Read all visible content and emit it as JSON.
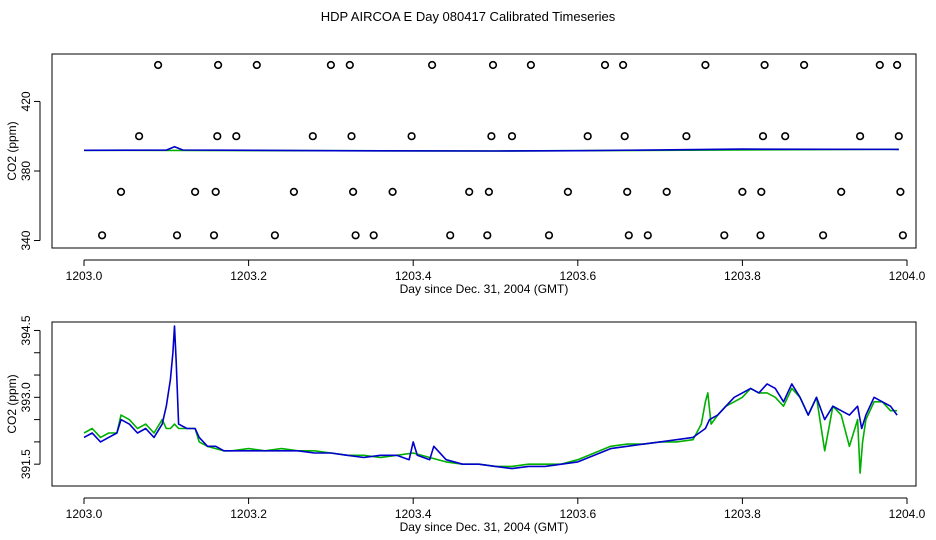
{
  "page_title": "HDP AIRCOA E  Day 080417  Calibrated Timeseries",
  "colors": {
    "background": "#ffffff",
    "axis": "#000000",
    "blue": "#0000cc",
    "green": "#00b000"
  },
  "chart_data": [
    {
      "type": "scatter",
      "xlabel": "Day since Dec. 31, 2004 (GMT)",
      "ylabel": "CO2 (ppm)",
      "xlim": [
        1203.0,
        1204.0
      ],
      "ylim": [
        338,
        445
      ],
      "x_ticks": [
        1203.0,
        1203.2,
        1203.4,
        1203.6,
        1203.8,
        1204.0
      ],
      "x_tick_labels": [
        "1203.0",
        "1203.2",
        "1203.4",
        "1203.6",
        "1203.8",
        "1204.0"
      ],
      "y_ticks": [
        340,
        380,
        420
      ],
      "y_tick_labels": [
        "340",
        "380",
        "420"
      ],
      "grid": false,
      "points": [
        [
          1203.022,
          343
        ],
        [
          1203.045,
          368
        ],
        [
          1203.067,
          400
        ],
        [
          1203.09,
          441
        ],
        [
          1203.113,
          343
        ],
        [
          1203.135,
          368
        ],
        [
          1203.158,
          343
        ],
        [
          1203.16,
          368
        ],
        [
          1203.162,
          400
        ],
        [
          1203.163,
          441
        ],
        [
          1203.185,
          400
        ],
        [
          1203.21,
          441
        ],
        [
          1203.232,
          343
        ],
        [
          1203.255,
          368
        ],
        [
          1203.278,
          400
        ],
        [
          1203.3,
          441
        ],
        [
          1203.323,
          441
        ],
        [
          1203.325,
          400
        ],
        [
          1203.327,
          368
        ],
        [
          1203.33,
          343
        ],
        [
          1203.352,
          343
        ],
        [
          1203.375,
          368
        ],
        [
          1203.398,
          400
        ],
        [
          1203.423,
          441
        ],
        [
          1203.445,
          343
        ],
        [
          1203.468,
          368
        ],
        [
          1203.49,
          343
        ],
        [
          1203.492,
          368
        ],
        [
          1203.495,
          400
        ],
        [
          1203.497,
          441
        ],
        [
          1203.52,
          400
        ],
        [
          1203.543,
          441
        ],
        [
          1203.565,
          343
        ],
        [
          1203.588,
          368
        ],
        [
          1203.612,
          400
        ],
        [
          1203.633,
          441
        ],
        [
          1203.655,
          441
        ],
        [
          1203.657,
          400
        ],
        [
          1203.66,
          368
        ],
        [
          1203.662,
          343
        ],
        [
          1203.685,
          343
        ],
        [
          1203.708,
          368
        ],
        [
          1203.732,
          400
        ],
        [
          1203.755,
          441
        ],
        [
          1203.778,
          343
        ],
        [
          1203.8,
          368
        ],
        [
          1203.822,
          343
        ],
        [
          1203.823,
          368
        ],
        [
          1203.825,
          400
        ],
        [
          1203.827,
          441
        ],
        [
          1203.852,
          400
        ],
        [
          1203.875,
          441
        ],
        [
          1203.898,
          343
        ],
        [
          1203.92,
          368
        ],
        [
          1203.943,
          400
        ],
        [
          1203.967,
          441
        ],
        [
          1203.988,
          441
        ],
        [
          1203.99,
          400
        ],
        [
          1203.992,
          368
        ],
        [
          1203.995,
          343
        ]
      ],
      "series": [
        {
          "color": "blue",
          "x": [
            1203.0,
            1203.1,
            1203.11,
            1203.12,
            1203.3,
            1203.5,
            1203.6,
            1203.8,
            1203.99
          ],
          "values": [
            391.9,
            392.0,
            394.0,
            392.1,
            391.7,
            391.5,
            391.7,
            392.6,
            392.4
          ]
        },
        {
          "color": "green",
          "x": [
            1203.0,
            1203.3,
            1203.5,
            1203.7,
            1203.99
          ],
          "values": [
            391.9,
            391.7,
            391.5,
            391.9,
            392.5
          ]
        }
      ]
    },
    {
      "type": "line",
      "xlabel": "Day since Dec. 31, 2004 (GMT)",
      "ylabel": "CO2 (ppm)",
      "xlim": [
        1203.0,
        1204.0
      ],
      "ylim": [
        391.1,
        394.6
      ],
      "x_ticks": [
        1203.0,
        1203.2,
        1203.4,
        1203.6,
        1203.8,
        1204.0
      ],
      "x_tick_labels": [
        "1203.0",
        "1203.2",
        "1203.4",
        "1203.6",
        "1203.8",
        "1204.0"
      ],
      "y_ticks": [
        391.5,
        392.0,
        392.5,
        393.0,
        393.5,
        394.0,
        394.5
      ],
      "y_tick_labels": [
        "391.5",
        "",
        "",
        "393.0",
        "",
        "",
        "394.5"
      ],
      "grid": false,
      "series": [
        {
          "color": "blue",
          "x": [
            1203.0,
            1203.01,
            1203.02,
            1203.03,
            1203.04,
            1203.045,
            1203.055,
            1203.065,
            1203.075,
            1203.085,
            1203.095,
            1203.1,
            1203.105,
            1203.108,
            1203.11,
            1203.112,
            1203.115,
            1203.125,
            1203.135,
            1203.14,
            1203.15,
            1203.16,
            1203.17,
            1203.18,
            1203.2,
            1203.22,
            1203.24,
            1203.26,
            1203.28,
            1203.3,
            1203.32,
            1203.34,
            1203.36,
            1203.38,
            1203.395,
            1203.4,
            1203.405,
            1203.42,
            1203.425,
            1203.44,
            1203.46,
            1203.48,
            1203.5,
            1203.52,
            1203.54,
            1203.56,
            1203.58,
            1203.6,
            1203.62,
            1203.64,
            1203.66,
            1203.68,
            1203.7,
            1203.72,
            1203.74,
            1203.755,
            1203.76,
            1203.77,
            1203.78,
            1203.79,
            1203.8,
            1203.81,
            1203.82,
            1203.83,
            1203.84,
            1203.85,
            1203.86,
            1203.87,
            1203.88,
            1203.89,
            1203.9,
            1203.91,
            1203.92,
            1203.93,
            1203.94,
            1203.945,
            1203.95,
            1203.96,
            1203.97,
            1203.98,
            1203.988
          ],
          "values": [
            392.1,
            392.2,
            392.0,
            392.1,
            392.2,
            392.5,
            392.4,
            392.2,
            392.3,
            392.1,
            392.4,
            392.8,
            393.4,
            394.0,
            394.6,
            393.8,
            392.4,
            392.3,
            392.3,
            392.1,
            391.9,
            391.9,
            391.8,
            391.8,
            391.8,
            391.8,
            391.8,
            391.8,
            391.75,
            391.75,
            391.7,
            391.65,
            391.7,
            391.7,
            391.6,
            392.0,
            391.7,
            391.6,
            391.9,
            391.6,
            391.5,
            391.5,
            391.45,
            391.4,
            391.45,
            391.45,
            391.5,
            391.55,
            391.7,
            391.85,
            391.9,
            391.95,
            392.0,
            392.05,
            392.1,
            392.3,
            392.5,
            392.6,
            392.8,
            393.0,
            393.1,
            393.2,
            393.1,
            393.3,
            393.2,
            392.9,
            393.3,
            393.0,
            392.6,
            393.0,
            392.5,
            392.8,
            392.7,
            392.6,
            392.8,
            392.3,
            392.6,
            393.0,
            392.9,
            392.8,
            392.6
          ]
        },
        {
          "color": "green",
          "x": [
            1203.0,
            1203.01,
            1203.02,
            1203.03,
            1203.04,
            1203.045,
            1203.055,
            1203.065,
            1203.075,
            1203.085,
            1203.095,
            1203.1,
            1203.105,
            1203.11,
            1203.115,
            1203.125,
            1203.135,
            1203.14,
            1203.15,
            1203.16,
            1203.17,
            1203.18,
            1203.2,
            1203.22,
            1203.24,
            1203.26,
            1203.28,
            1203.3,
            1203.32,
            1203.34,
            1203.36,
            1203.38,
            1203.4,
            1203.42,
            1203.44,
            1203.46,
            1203.48,
            1203.5,
            1203.52,
            1203.54,
            1203.56,
            1203.58,
            1203.6,
            1203.62,
            1203.64,
            1203.66,
            1203.68,
            1203.7,
            1203.72,
            1203.74,
            1203.75,
            1203.755,
            1203.758,
            1203.762,
            1203.77,
            1203.78,
            1203.79,
            1203.8,
            1203.81,
            1203.82,
            1203.83,
            1203.84,
            1203.85,
            1203.86,
            1203.87,
            1203.88,
            1203.89,
            1203.9,
            1203.91,
            1203.92,
            1203.93,
            1203.94,
            1203.943,
            1203.946,
            1203.95,
            1203.96,
            1203.97,
            1203.98,
            1203.988
          ],
          "values": [
            392.2,
            392.3,
            392.1,
            392.2,
            392.2,
            392.6,
            392.5,
            392.3,
            392.4,
            392.2,
            392.5,
            392.3,
            392.3,
            392.4,
            392.3,
            392.3,
            392.3,
            392.0,
            391.9,
            391.85,
            391.8,
            391.8,
            391.85,
            391.8,
            391.85,
            391.8,
            391.8,
            391.75,
            391.7,
            391.7,
            391.65,
            391.7,
            391.75,
            391.65,
            391.55,
            391.5,
            391.5,
            391.45,
            391.45,
            391.5,
            391.5,
            391.5,
            391.6,
            391.75,
            391.9,
            391.95,
            391.95,
            392.0,
            392.0,
            392.05,
            392.4,
            392.9,
            393.1,
            392.4,
            392.6,
            392.8,
            392.9,
            393.0,
            393.2,
            393.1,
            393.1,
            393.0,
            392.8,
            393.2,
            393.0,
            392.6,
            393.0,
            391.8,
            392.8,
            392.6,
            391.9,
            392.5,
            391.3,
            392.0,
            392.5,
            392.9,
            392.9,
            392.7,
            392.7
          ]
        }
      ]
    }
  ]
}
